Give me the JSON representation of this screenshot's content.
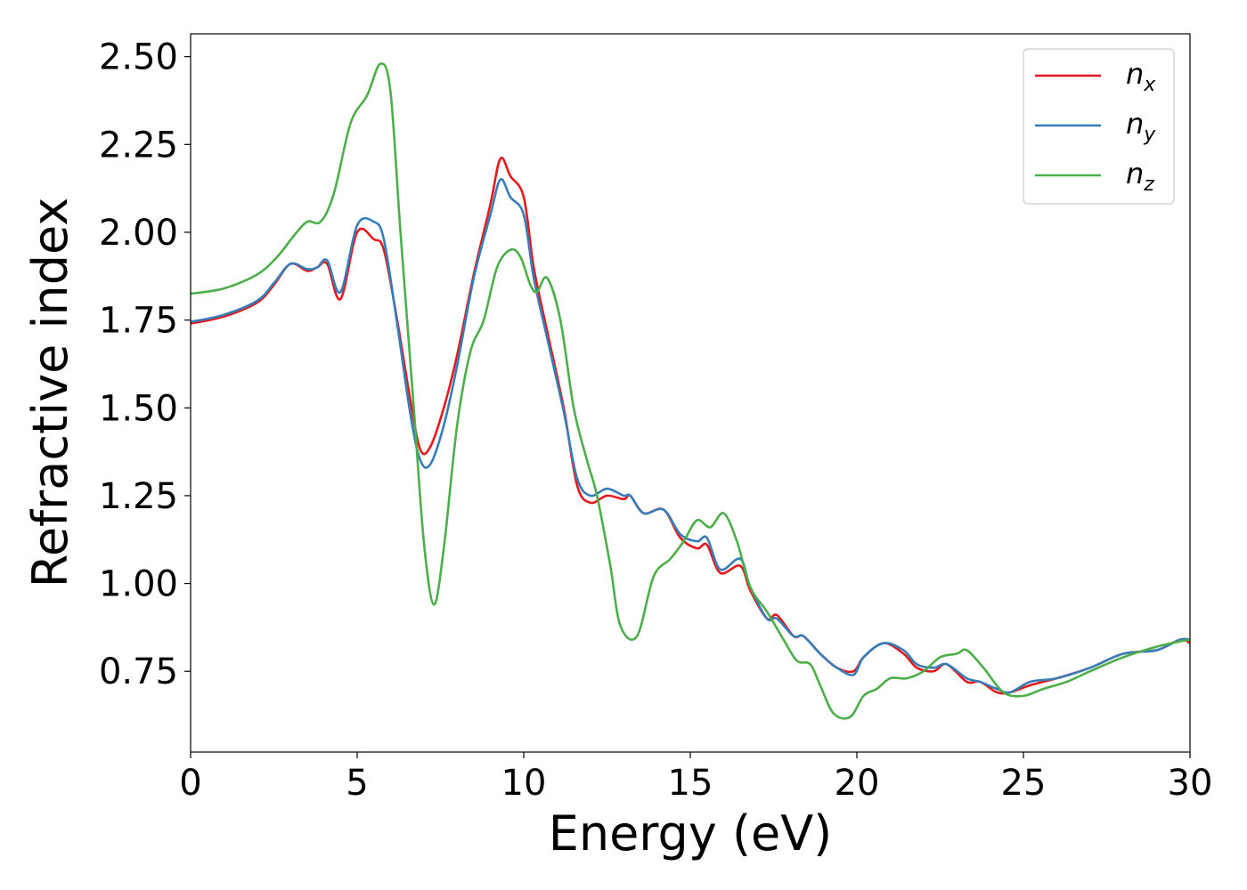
{
  "chart_data": {
    "type": "line",
    "title": "",
    "xlabel": "Energy (eV)",
    "ylabel": "Refractive index",
    "xlim": [
      0,
      30
    ],
    "ylim": [
      0.52,
      2.565
    ],
    "x_ticks": [
      0,
      5,
      10,
      15,
      20,
      25,
      30
    ],
    "x_tick_labels": [
      "0",
      "5",
      "10",
      "15",
      "20",
      "25",
      "30"
    ],
    "y_ticks": [
      0.75,
      1.0,
      1.25,
      1.5,
      1.75,
      2.0,
      2.25,
      2.5
    ],
    "y_tick_labels": [
      "0.75",
      "1.00",
      "1.25",
      "1.50",
      "1.75",
      "2.00",
      "2.25",
      "2.50"
    ],
    "grid": false,
    "legend_position": "top-right",
    "series": [
      {
        "name": "n_x",
        "label_base": "n",
        "label_sub": "x",
        "color": "#e41a1c",
        "points": [
          [
            0,
            1.74
          ],
          [
            1,
            1.76
          ],
          [
            2,
            1.8
          ],
          [
            2.5,
            1.85
          ],
          [
            3,
            1.91
          ],
          [
            3.5,
            1.89
          ],
          [
            3.8,
            1.9
          ],
          [
            4.1,
            1.91
          ],
          [
            4.5,
            1.81
          ],
          [
            5,
            2.0
          ],
          [
            5.5,
            1.98
          ],
          [
            5.8,
            1.95
          ],
          [
            6.2,
            1.75
          ],
          [
            6.6,
            1.52
          ],
          [
            6.9,
            1.38
          ],
          [
            7.2,
            1.39
          ],
          [
            7.6,
            1.5
          ],
          [
            8,
            1.65
          ],
          [
            8.5,
            1.88
          ],
          [
            9.0,
            2.08
          ],
          [
            9.3,
            2.21
          ],
          [
            9.6,
            2.16
          ],
          [
            10.0,
            2.1
          ],
          [
            10.3,
            1.9
          ],
          [
            10.7,
            1.72
          ],
          [
            11.2,
            1.5
          ],
          [
            11.6,
            1.28
          ],
          [
            12.0,
            1.23
          ],
          [
            12.5,
            1.25
          ],
          [
            13.0,
            1.24
          ],
          [
            13.2,
            1.25
          ],
          [
            13.6,
            1.2
          ],
          [
            14.2,
            1.21
          ],
          [
            14.7,
            1.13
          ],
          [
            15.2,
            1.1
          ],
          [
            15.5,
            1.11
          ],
          [
            15.9,
            1.03
          ],
          [
            16.5,
            1.05
          ],
          [
            16.8,
            0.98
          ],
          [
            17.3,
            0.9
          ],
          [
            17.6,
            0.91
          ],
          [
            18.1,
            0.85
          ],
          [
            18.4,
            0.85
          ],
          [
            18.9,
            0.8
          ],
          [
            19.4,
            0.76
          ],
          [
            19.9,
            0.75
          ],
          [
            20.2,
            0.79
          ],
          [
            20.8,
            0.83
          ],
          [
            21.4,
            0.8
          ],
          [
            21.8,
            0.76
          ],
          [
            22.3,
            0.75
          ],
          [
            22.7,
            0.77
          ],
          [
            23.3,
            0.72
          ],
          [
            23.7,
            0.72
          ],
          [
            24.2,
            0.69
          ],
          [
            24.6,
            0.69
          ],
          [
            25.2,
            0.71
          ],
          [
            26.0,
            0.73
          ],
          [
            27.0,
            0.76
          ],
          [
            28.0,
            0.8
          ],
          [
            29.0,
            0.81
          ],
          [
            29.7,
            0.84
          ],
          [
            30.0,
            0.83
          ]
        ]
      },
      {
        "name": "n_y",
        "label_base": "n",
        "label_sub": "y",
        "color": "#377eb8",
        "points": [
          [
            0,
            1.745
          ],
          [
            1,
            1.765
          ],
          [
            2,
            1.805
          ],
          [
            2.5,
            1.855
          ],
          [
            3,
            1.91
          ],
          [
            3.5,
            1.895
          ],
          [
            3.8,
            1.9
          ],
          [
            4.1,
            1.92
          ],
          [
            4.5,
            1.83
          ],
          [
            5,
            2.02
          ],
          [
            5.5,
            2.03
          ],
          [
            5.8,
            1.98
          ],
          [
            6.2,
            1.74
          ],
          [
            6.6,
            1.48
          ],
          [
            6.9,
            1.35
          ],
          [
            7.2,
            1.34
          ],
          [
            7.6,
            1.45
          ],
          [
            8,
            1.62
          ],
          [
            8.5,
            1.87
          ],
          [
            9.0,
            2.05
          ],
          [
            9.3,
            2.15
          ],
          [
            9.6,
            2.1
          ],
          [
            10.0,
            2.05
          ],
          [
            10.3,
            1.87
          ],
          [
            10.7,
            1.7
          ],
          [
            11.2,
            1.49
          ],
          [
            11.6,
            1.3
          ],
          [
            12.0,
            1.25
          ],
          [
            12.5,
            1.27
          ],
          [
            13.0,
            1.25
          ],
          [
            13.2,
            1.25
          ],
          [
            13.6,
            1.2
          ],
          [
            14.2,
            1.21
          ],
          [
            14.7,
            1.14
          ],
          [
            15.2,
            1.12
          ],
          [
            15.5,
            1.13
          ],
          [
            15.9,
            1.04
          ],
          [
            16.5,
            1.07
          ],
          [
            16.8,
            0.99
          ],
          [
            17.3,
            0.9
          ],
          [
            17.6,
            0.9
          ],
          [
            18.1,
            0.85
          ],
          [
            18.4,
            0.85
          ],
          [
            18.9,
            0.8
          ],
          [
            19.4,
            0.76
          ],
          [
            19.9,
            0.74
          ],
          [
            20.2,
            0.79
          ],
          [
            20.8,
            0.83
          ],
          [
            21.4,
            0.81
          ],
          [
            21.8,
            0.77
          ],
          [
            22.3,
            0.76
          ],
          [
            22.7,
            0.77
          ],
          [
            23.3,
            0.73
          ],
          [
            23.7,
            0.72
          ],
          [
            24.2,
            0.7
          ],
          [
            24.6,
            0.69
          ],
          [
            25.2,
            0.72
          ],
          [
            26.0,
            0.73
          ],
          [
            27.0,
            0.76
          ],
          [
            28.0,
            0.8
          ],
          [
            29.0,
            0.81
          ],
          [
            29.7,
            0.84
          ],
          [
            30.0,
            0.84
          ]
        ]
      },
      {
        "name": "n_z",
        "label_base": "n",
        "label_sub": "z",
        "color": "#4daf4a",
        "points": [
          [
            0,
            1.825
          ],
          [
            1,
            1.84
          ],
          [
            2,
            1.88
          ],
          [
            2.6,
            1.93
          ],
          [
            3.1,
            1.99
          ],
          [
            3.5,
            2.03
          ],
          [
            3.9,
            2.03
          ],
          [
            4.3,
            2.11
          ],
          [
            4.8,
            2.31
          ],
          [
            5.3,
            2.39
          ],
          [
            5.7,
            2.48
          ],
          [
            6.0,
            2.4
          ],
          [
            6.3,
            2.0
          ],
          [
            6.7,
            1.5
          ],
          [
            7.0,
            1.12
          ],
          [
            7.3,
            0.94
          ],
          [
            7.6,
            1.1
          ],
          [
            8.0,
            1.45
          ],
          [
            8.4,
            1.66
          ],
          [
            8.8,
            1.75
          ],
          [
            9.2,
            1.9
          ],
          [
            9.6,
            1.95
          ],
          [
            9.9,
            1.93
          ],
          [
            10.2,
            1.85
          ],
          [
            10.4,
            1.83
          ],
          [
            10.7,
            1.87
          ],
          [
            11.1,
            1.75
          ],
          [
            11.5,
            1.5
          ],
          [
            11.9,
            1.35
          ],
          [
            12.2,
            1.25
          ],
          [
            12.6,
            1.05
          ],
          [
            12.9,
            0.88
          ],
          [
            13.4,
            0.85
          ],
          [
            13.9,
            1.02
          ],
          [
            14.4,
            1.07
          ],
          [
            14.8,
            1.12
          ],
          [
            15.2,
            1.18
          ],
          [
            15.6,
            1.16
          ],
          [
            16.0,
            1.2
          ],
          [
            16.4,
            1.12
          ],
          [
            16.8,
            0.99
          ],
          [
            17.3,
            0.92
          ],
          [
            17.8,
            0.84
          ],
          [
            18.2,
            0.78
          ],
          [
            18.6,
            0.77
          ],
          [
            18.9,
            0.71
          ],
          [
            19.3,
            0.63
          ],
          [
            19.8,
            0.62
          ],
          [
            20.2,
            0.68
          ],
          [
            20.6,
            0.7
          ],
          [
            21.0,
            0.73
          ],
          [
            21.5,
            0.73
          ],
          [
            22.0,
            0.75
          ],
          [
            22.5,
            0.79
          ],
          [
            23.0,
            0.8
          ],
          [
            23.3,
            0.81
          ],
          [
            23.8,
            0.76
          ],
          [
            24.4,
            0.69
          ],
          [
            25.0,
            0.68
          ],
          [
            25.6,
            0.7
          ],
          [
            26.3,
            0.72
          ],
          [
            27.0,
            0.75
          ],
          [
            28.0,
            0.79
          ],
          [
            29.0,
            0.82
          ],
          [
            29.7,
            0.835
          ],
          [
            30.0,
            0.84
          ]
        ]
      }
    ]
  }
}
